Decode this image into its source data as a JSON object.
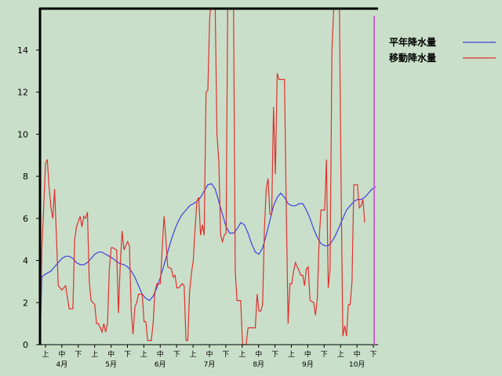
{
  "chart_data": {
    "type": "line",
    "ylim": [
      0,
      16
    ],
    "yticks": [
      0,
      2,
      4,
      6,
      8,
      10,
      12,
      14
    ],
    "x_minor_labels": [
      "上",
      "中",
      "下",
      "上",
      "中",
      "下",
      "上",
      "中",
      "下",
      "上",
      "中",
      "下",
      "上",
      "中",
      "下",
      "上",
      "中",
      "下",
      "上",
      "中",
      "下"
    ],
    "month_labels": [
      "4月",
      "5月",
      "6月",
      "7月",
      "8月",
      "9月",
      "10月"
    ],
    "legend_position": "top-right",
    "grid": false,
    "colors": {
      "background": "#c9dfc9",
      "normal": "#4040e0",
      "moving": "#e03030",
      "marker": "#d060e0",
      "axis": "#000000"
    },
    "series": [
      {
        "name": "平年降水量",
        "color": "#4040e0",
        "points": [
          [
            0,
            0
          ],
          [
            0.5,
            3.2
          ],
          [
            1,
            3.3
          ],
          [
            2,
            3.4
          ],
          [
            3,
            3.5
          ],
          [
            4,
            3.7
          ],
          [
            5,
            3.9
          ],
          [
            6,
            4.1
          ],
          [
            7,
            4.2
          ],
          [
            8,
            4.2
          ],
          [
            9,
            4.1
          ],
          [
            10,
            3.9
          ],
          [
            11,
            3.8
          ],
          [
            12,
            3.8
          ],
          [
            13,
            3.9
          ],
          [
            14,
            4.1
          ],
          [
            15,
            4.3
          ],
          [
            16,
            4.4
          ],
          [
            17,
            4.4
          ],
          [
            18,
            4.3
          ],
          [
            19,
            4.2
          ],
          [
            20,
            4.1
          ],
          [
            21,
            3.95
          ],
          [
            22,
            3.85
          ],
          [
            23,
            3.8
          ],
          [
            24,
            3.7
          ],
          [
            25,
            3.5
          ],
          [
            26,
            3.2
          ],
          [
            27,
            2.8
          ],
          [
            28,
            2.4
          ],
          [
            29,
            2.2
          ],
          [
            30,
            2.1
          ],
          [
            31,
            2.3
          ],
          [
            32,
            2.7
          ],
          [
            33,
            3.2
          ],
          [
            34,
            3.8
          ],
          [
            35,
            4.4
          ],
          [
            36,
            5.0
          ],
          [
            37,
            5.5
          ],
          [
            38,
            5.9
          ],
          [
            39,
            6.2
          ],
          [
            40,
            6.4
          ],
          [
            41,
            6.6
          ],
          [
            42,
            6.7
          ],
          [
            43,
            6.8
          ],
          [
            44,
            7.0
          ],
          [
            45,
            7.3
          ],
          [
            46,
            7.6
          ],
          [
            47,
            7.65
          ],
          [
            48,
            7.4
          ],
          [
            49,
            6.8
          ],
          [
            50,
            6.2
          ],
          [
            51,
            5.6
          ],
          [
            52,
            5.3
          ],
          [
            53,
            5.3
          ],
          [
            54,
            5.5
          ],
          [
            55,
            5.8
          ],
          [
            56,
            5.7
          ],
          [
            57,
            5.3
          ],
          [
            58,
            4.8
          ],
          [
            59,
            4.4
          ],
          [
            60,
            4.3
          ],
          [
            61,
            4.6
          ],
          [
            62,
            5.2
          ],
          [
            63,
            5.9
          ],
          [
            64,
            6.6
          ],
          [
            65,
            7.0
          ],
          [
            66,
            7.2
          ],
          [
            67,
            7.0
          ],
          [
            68,
            6.7
          ],
          [
            69,
            6.6
          ],
          [
            70,
            6.6
          ],
          [
            71,
            6.7
          ],
          [
            72,
            6.7
          ],
          [
            73,
            6.4
          ],
          [
            74,
            6.0
          ],
          [
            75,
            5.5
          ],
          [
            76,
            5.1
          ],
          [
            77,
            4.8
          ],
          [
            78,
            4.7
          ],
          [
            79,
            4.7
          ],
          [
            80,
            4.9
          ],
          [
            81,
            5.2
          ],
          [
            82,
            5.6
          ],
          [
            83,
            6.0
          ],
          [
            84,
            6.4
          ],
          [
            85,
            6.6
          ],
          [
            86,
            6.8
          ],
          [
            87,
            6.9
          ],
          [
            88,
            6.9
          ],
          [
            89,
            7.0
          ],
          [
            90,
            7.2
          ],
          [
            91,
            7.4
          ],
          [
            92,
            7.5
          ]
        ]
      },
      {
        "name": "移動降水量",
        "color": "#e03030",
        "points": [
          [
            0,
            0
          ],
          [
            0.5,
            4.5
          ],
          [
            1,
            6.5
          ],
          [
            1.5,
            8.6
          ],
          [
            2,
            8.8
          ],
          [
            2.5,
            7.5
          ],
          [
            3,
            6.5
          ],
          [
            3.5,
            6.0
          ],
          [
            4,
            7.4
          ],
          [
            4.5,
            5.2
          ],
          [
            5,
            2.8
          ],
          [
            6,
            2.6
          ],
          [
            7,
            2.8
          ],
          [
            8,
            1.7
          ],
          [
            9,
            1.7
          ],
          [
            9.5,
            5.0
          ],
          [
            10,
            5.6
          ],
          [
            11,
            6.1
          ],
          [
            11.5,
            5.6
          ],
          [
            12,
            6.1
          ],
          [
            12.5,
            6.0
          ],
          [
            13,
            6.3
          ],
          [
            13.5,
            3.0
          ],
          [
            14,
            2.1
          ],
          [
            15,
            1.9
          ],
          [
            15.5,
            1.0
          ],
          [
            16,
            1.0
          ],
          [
            16.5,
            0.8
          ],
          [
            17,
            0.6
          ],
          [
            17.5,
            1.0
          ],
          [
            18,
            0.6
          ],
          [
            18.5,
            1.0
          ],
          [
            19,
            3.6
          ],
          [
            19.5,
            4.6
          ],
          [
            20,
            4.6
          ],
          [
            21,
            4.5
          ],
          [
            21.5,
            1.5
          ],
          [
            22,
            3.8
          ],
          [
            22.5,
            5.4
          ],
          [
            23,
            4.5
          ],
          [
            23.5,
            4.7
          ],
          [
            24,
            4.9
          ],
          [
            24.5,
            4.7
          ],
          [
            25,
            1.6
          ],
          [
            25.5,
            0.5
          ],
          [
            26,
            1.8
          ],
          [
            26.5,
            2.0
          ],
          [
            27,
            2.4
          ],
          [
            28,
            2.4
          ],
          [
            28.5,
            1.1
          ],
          [
            29,
            1.1
          ],
          [
            29.5,
            0.2
          ],
          [
            30,
            0.2
          ],
          [
            30.5,
            0.2
          ],
          [
            31,
            1.0
          ],
          [
            31.5,
            2.5
          ],
          [
            32,
            2.9
          ],
          [
            33,
            2.9
          ],
          [
            33.5,
            4.6
          ],
          [
            34,
            6.1
          ],
          [
            34.5,
            5.0
          ],
          [
            35,
            3.7
          ],
          [
            36,
            3.6
          ],
          [
            36.5,
            3.2
          ],
          [
            37,
            3.3
          ],
          [
            37.5,
            2.7
          ],
          [
            38,
            2.7
          ],
          [
            38.5,
            2.8
          ],
          [
            39,
            2.9
          ],
          [
            39.5,
            2.8
          ],
          [
            40,
            0.2
          ],
          [
            40.5,
            0.2
          ],
          [
            41,
            2.5
          ],
          [
            41.5,
            3.4
          ],
          [
            42,
            4.0
          ],
          [
            42.5,
            5.5
          ],
          [
            43,
            6.8
          ],
          [
            43.5,
            7.0
          ],
          [
            44,
            5.2
          ],
          [
            44.5,
            5.7
          ],
          [
            45,
            5.2
          ],
          [
            45.5,
            12.0
          ],
          [
            46,
            12.1
          ],
          [
            46.5,
            15.5
          ],
          [
            47,
            16.5
          ],
          [
            47.5,
            16.0
          ],
          [
            48,
            16.2
          ],
          [
            48.5,
            10.0
          ],
          [
            49,
            8.7
          ],
          [
            49.5,
            5.2
          ],
          [
            50,
            4.9
          ],
          [
            50.5,
            5.2
          ],
          [
            51,
            5.3
          ],
          [
            51.5,
            18.0
          ],
          [
            52,
            18.0
          ],
          [
            53,
            17.0
          ],
          [
            53.5,
            3.5
          ],
          [
            54,
            2.1
          ],
          [
            55,
            2.1
          ],
          [
            55.5,
            0.0
          ],
          [
            56,
            0.0
          ],
          [
            56.5,
            0.0
          ],
          [
            57,
            0.8
          ],
          [
            57.5,
            0.8
          ],
          [
            58,
            0.8
          ],
          [
            59,
            0.8
          ],
          [
            59.5,
            2.4
          ],
          [
            60,
            1.6
          ],
          [
            60.5,
            1.6
          ],
          [
            61,
            1.9
          ],
          [
            61.5,
            5.5
          ],
          [
            62,
            7.4
          ],
          [
            62.5,
            7.9
          ],
          [
            63,
            6.2
          ],
          [
            63.5,
            6.2
          ],
          [
            64,
            11.3
          ],
          [
            64.5,
            8.1
          ],
          [
            65,
            12.9
          ],
          [
            65.5,
            12.6
          ],
          [
            66,
            12.6
          ],
          [
            66.5,
            12.6
          ],
          [
            67,
            12.6
          ],
          [
            67.5,
            6.4
          ],
          [
            68,
            1.0
          ],
          [
            68.5,
            2.9
          ],
          [
            69,
            2.9
          ],
          [
            69.5,
            3.5
          ],
          [
            70,
            3.9
          ],
          [
            71,
            3.5
          ],
          [
            71.5,
            3.3
          ],
          [
            72,
            3.3
          ],
          [
            72.5,
            2.8
          ],
          [
            73,
            3.6
          ],
          [
            73.5,
            3.7
          ],
          [
            74,
            2.1
          ],
          [
            75,
            2.0
          ],
          [
            75.5,
            1.4
          ],
          [
            76,
            2.2
          ],
          [
            76.5,
            5.0
          ],
          [
            77,
            6.4
          ],
          [
            78,
            6.4
          ],
          [
            78.5,
            8.8
          ],
          [
            79,
            2.7
          ],
          [
            79.5,
            3.6
          ],
          [
            80,
            14.0
          ],
          [
            80.5,
            16.0
          ],
          [
            81,
            17.0
          ],
          [
            81.5,
            18.0
          ],
          [
            82,
            17.0
          ],
          [
            82.5,
            7.8
          ],
          [
            83,
            0.4
          ],
          [
            83.5,
            0.9
          ],
          [
            84,
            0.4
          ],
          [
            84.5,
            1.9
          ],
          [
            85,
            1.9
          ],
          [
            85.5,
            3.0
          ],
          [
            86,
            7.6
          ],
          [
            87,
            7.6
          ],
          [
            87.5,
            6.5
          ],
          [
            88,
            6.6
          ],
          [
            88.5,
            6.9
          ],
          [
            89,
            5.8
          ]
        ]
      }
    ]
  }
}
